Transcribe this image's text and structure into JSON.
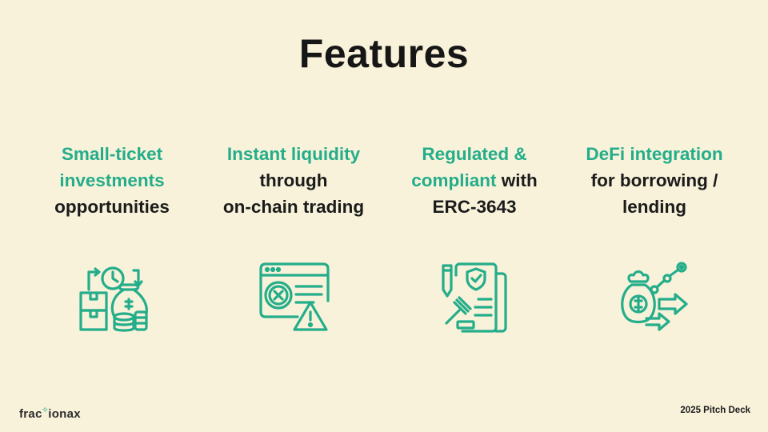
{
  "title": "Features",
  "features": [
    {
      "icon": "investment-money-bag-icon",
      "lines": [
        [
          [
            "Small-ticket",
            "green"
          ]
        ],
        [
          [
            "investments",
            "green"
          ]
        ],
        [
          [
            "opportunities",
            "dark"
          ]
        ]
      ]
    },
    {
      "icon": "browser-error-warning-icon",
      "lines": [
        [
          [
            "Instant liquidity",
            "green"
          ]
        ],
        [
          [
            "through",
            "dark"
          ]
        ],
        [
          [
            "on-chain trading",
            "dark"
          ]
        ]
      ]
    },
    {
      "icon": "compliance-document-gavel-icon",
      "lines": [
        [
          [
            "Regulated &",
            "green"
          ]
        ],
        [
          [
            "compliant",
            "green"
          ],
          [
            " with",
            "dark"
          ]
        ],
        [
          [
            "ERC-3643",
            "dark"
          ]
        ]
      ]
    },
    {
      "icon": "defi-money-bag-graph-icon",
      "lines": [
        [
          [
            "DeFi integration",
            "green"
          ]
        ],
        [
          [
            "for borrowing /",
            "dark"
          ]
        ],
        [
          [
            "lending",
            "dark"
          ]
        ]
      ]
    }
  ],
  "footer": {
    "logo_before": "frac",
    "logo_after": "ionax",
    "deck_label": "2025 Pitch Deck"
  },
  "colors": {
    "accent": "#24ad8a",
    "background": "#f8f2da",
    "text": "#1b1b1b"
  }
}
